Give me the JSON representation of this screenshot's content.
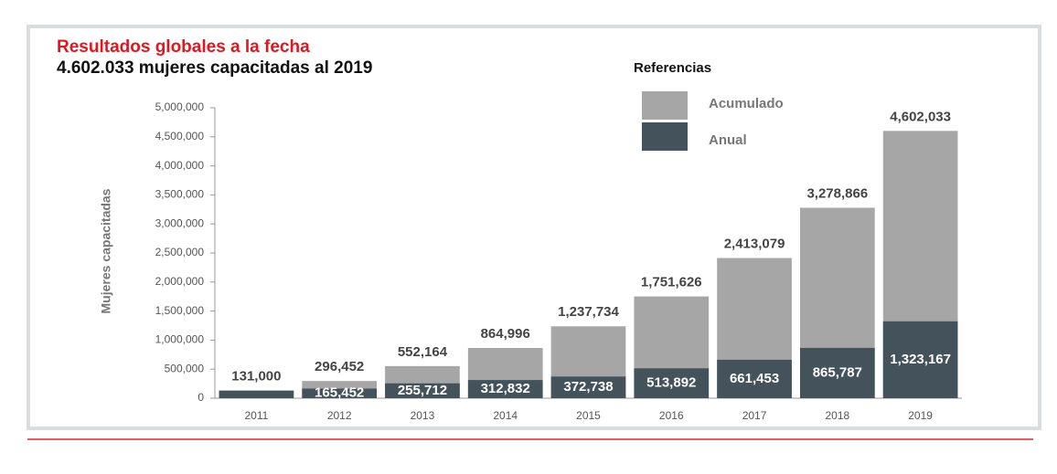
{
  "chart_data": {
    "type": "bar",
    "title": "Resultados globales a la fecha",
    "subtitle": "4.602.033 mujeres capacitadas al 2019",
    "legend_title": "Referencias",
    "y_label": "Mujeres capacitadas",
    "categories": [
      "2011",
      "2012",
      "2013",
      "2014",
      "2015",
      "2016",
      "2017",
      "2018",
      "2019"
    ],
    "series": [
      {
        "name": "Acumulado",
        "color": "#a6a6a6",
        "values": [
          131000,
          296452,
          552164,
          864996,
          1237734,
          1751626,
          2413079,
          3278866,
          4602033
        ],
        "value_labels": [
          "131,000",
          "296,452",
          "552,164",
          "864,996",
          "1,237,734",
          "1,751,626",
          "2,413,079",
          "3,278,866",
          "4,602,033"
        ]
      },
      {
        "name": "Anual",
        "color": "#44525c",
        "values": [
          131000,
          165452,
          255712,
          312832,
          372738,
          513892,
          661453,
          865787,
          1323167
        ],
        "value_labels": [
          null,
          "165,452",
          "255,712",
          "312,832",
          "372,738",
          "513,892",
          "661,453",
          "865,787",
          "1,323,167"
        ]
      }
    ],
    "ylim": [
      0,
      5000000
    ],
    "yticks": [
      0,
      {
        "value": 500000,
        "label": "500,000"
      },
      {
        "value": 1000000,
        "label": "1,000,000"
      },
      {
        "value": 1500000,
        "label": "1,500,000"
      },
      {
        "value": 2000000,
        "label": "2,000,000"
      },
      {
        "value": 2500000,
        "label": "2,500,000"
      },
      {
        "value": 3000000,
        "label": "3,000,000"
      },
      {
        "value": 3500000,
        "label": "3,500,000"
      },
      {
        "value": 4000000,
        "label": "4,000,000"
      },
      {
        "value": 4500000,
        "label": "4,500,000"
      },
      {
        "value": 5000000,
        "label": "5,000,000"
      }
    ],
    "legend_position": "top"
  }
}
